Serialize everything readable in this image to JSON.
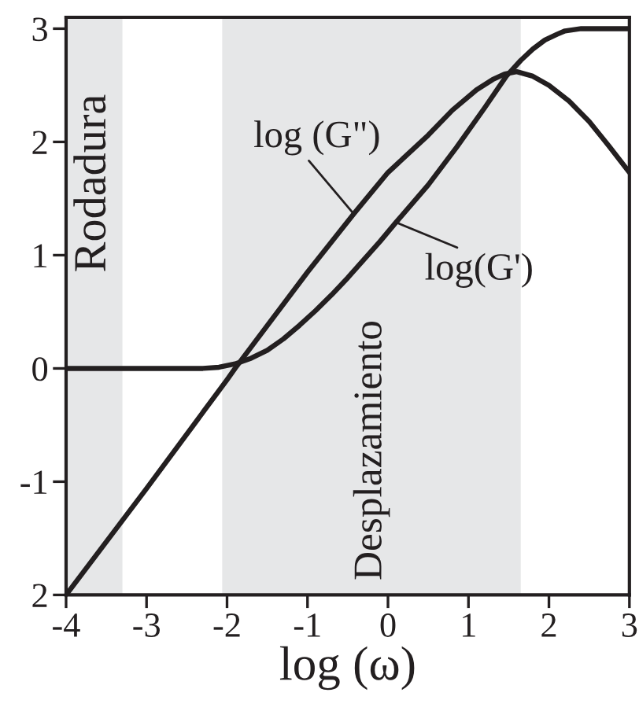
{
  "chart_data": {
    "type": "line",
    "xlabel": "log (ω)",
    "xlim": [
      -4,
      3
    ],
    "xticks": [
      -4,
      -3,
      -2,
      -1,
      0,
      1,
      2,
      3
    ],
    "ylim": [
      -2,
      3.1
    ],
    "yticks": [
      {
        "value": -2,
        "label": "2"
      },
      -1,
      0,
      1,
      2,
      3
    ],
    "series": [
      {
        "color": "#231f20",
        "x": [
          -4,
          -3,
          -2,
          -1.9,
          -1,
          -0.42,
          0,
          0.5,
          0.8,
          1.1,
          1.3,
          1.45,
          1.6,
          1.8,
          2.0,
          2.25,
          2.5,
          2.75,
          3
        ],
        "values": [
          -2,
          -1.06,
          -0.1,
          0,
          0.85,
          1.37,
          1.73,
          2.06,
          2.28,
          2.46,
          2.55,
          2.6,
          2.62,
          2.58,
          2.5,
          2.36,
          2.18,
          1.96,
          1.73
        ]
      },
      {
        "color": "#231f20",
        "x": [
          -4,
          -2.5,
          -2.3,
          -2.1,
          -1.9,
          -1.7,
          -1.5,
          -1.3,
          -1.1,
          -0.9,
          -0.7,
          -0.5,
          -0.3,
          -0.1,
          0.1,
          0.5,
          0.85,
          1.2,
          1.47,
          1.65,
          1.8,
          1.95,
          2.1,
          2.2,
          2.4,
          3
        ],
        "values": [
          0,
          0,
          0,
          0.01,
          0.04,
          0.09,
          0.16,
          0.26,
          0.38,
          0.51,
          0.65,
          0.8,
          0.96,
          1.12,
          1.29,
          1.62,
          1.95,
          2.3,
          2.58,
          2.72,
          2.82,
          2.9,
          2.95,
          2.98,
          3,
          3
        ]
      }
    ],
    "bands": [
      {
        "axis": "x",
        "from": -4,
        "to": -3.3,
        "label": "Rodadura",
        "color": "#e6e7e8"
      },
      {
        "axis": "x",
        "from": -2.06,
        "to": 1.65,
        "label": "Desplazamiento",
        "color": "#e6e7e8"
      }
    ],
    "annotations": [
      {
        "text": "log (G\")",
        "x": -0.42,
        "y": 1.36
      },
      {
        "text": "log(G')",
        "x": 0.1,
        "y": 1.29
      }
    ]
  }
}
